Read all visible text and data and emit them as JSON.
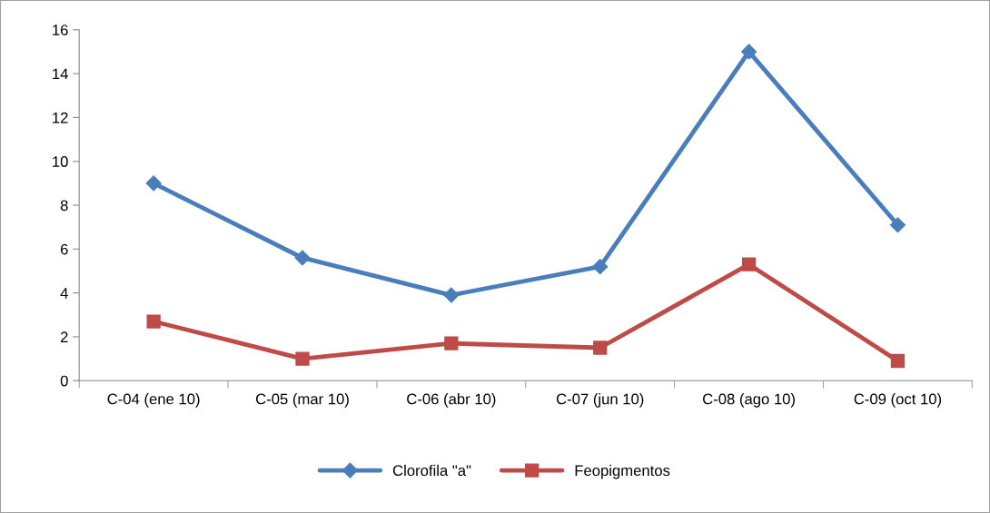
{
  "chart_data": {
    "type": "line",
    "categories": [
      "C-04 (ene 10)",
      "C-05 (mar 10)",
      "C-06 (abr 10)",
      "C-07 (jun 10)",
      "C-08 (ago 10)",
      "C-09 (oct 10)"
    ],
    "series": [
      {
        "name": "Clorofila \"a\"",
        "color": "#4a7ebb",
        "marker": "diamond",
        "values": [
          9.0,
          5.6,
          3.9,
          5.2,
          15.0,
          7.1
        ]
      },
      {
        "name": "Feopigmentos",
        "color": "#be4b48",
        "marker": "square",
        "values": [
          2.7,
          1.0,
          1.7,
          1.5,
          5.3,
          0.9
        ]
      }
    ],
    "ylim": [
      0,
      16
    ],
    "yticks": [
      0,
      2,
      4,
      6,
      8,
      10,
      12,
      14,
      16
    ],
    "grid": false,
    "legend": "bottom",
    "line_style": "solid"
  }
}
